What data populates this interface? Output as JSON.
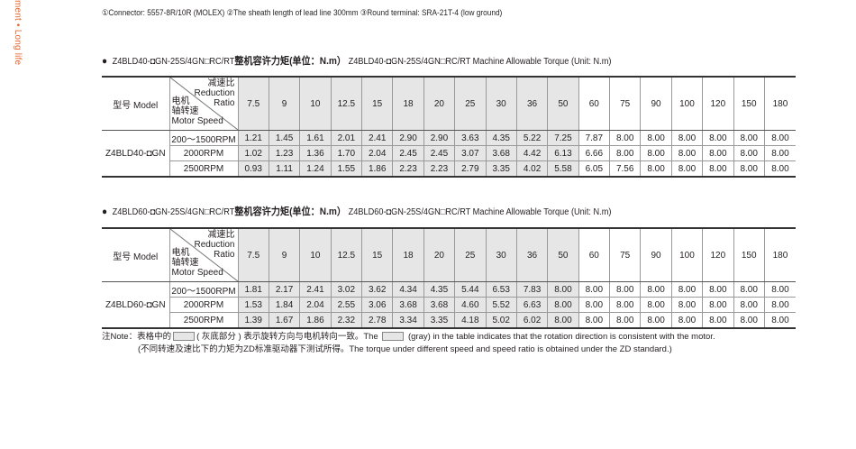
{
  "side_text": "ment • Long life",
  "top_notes": "①Connector: 5557-8R/10R (MOLEX)  ②The sheath length of lead line 300mm  ③Round terminal: SRA-21T-4 (low ground)",
  "colors": {
    "accent": "#e8662e",
    "gray_cell": "#e6e6e6"
  },
  "header": {
    "model_label": "型号 Model",
    "ratio_cn": "减速比",
    "ratio_en1": "Reduction",
    "ratio_en2": "Ratio",
    "speed_cn1": "电机",
    "speed_cn2": "轴转速",
    "speed_en": "Motor Speed"
  },
  "ratios": [
    "7.5",
    "9",
    "10",
    "12.5",
    "15",
    "18",
    "20",
    "25",
    "30",
    "36",
    "50",
    "60",
    "75",
    "90",
    "100",
    "120",
    "150",
    "180"
  ],
  "gray_ratio_count": 11,
  "tables": [
    {
      "title_prefix": "Z4BLD40-◘GN-25S/4GN□RC/RT",
      "title_cn": "整机容许力矩(单位：N.m）",
      "title_en": "Z4BLD40-◘GN-25S/4GN□RC/RT Machine Allowable Torque (Unit: N.m)",
      "model": "Z4BLD40-◘GN",
      "rows": [
        {
          "speed": "200～1500RPM",
          "values": [
            "1.21",
            "1.45",
            "1.61",
            "2.01",
            "2.41",
            "2.90",
            "2.90",
            "3.63",
            "4.35",
            "5.22",
            "7.25",
            "7.87",
            "8.00",
            "8.00",
            "8.00",
            "8.00",
            "8.00",
            "8.00"
          ]
        },
        {
          "speed": "2000RPM",
          "values": [
            "1.02",
            "1.23",
            "1.36",
            "1.70",
            "2.04",
            "2.45",
            "2.45",
            "3.07",
            "3.68",
            "4.42",
            "6.13",
            "6.66",
            "8.00",
            "8.00",
            "8.00",
            "8.00",
            "8.00",
            "8.00"
          ]
        },
        {
          "speed": "2500RPM",
          "values": [
            "0.93",
            "1.11",
            "1.24",
            "1.55",
            "1.86",
            "2.23",
            "2.23",
            "2.79",
            "3.35",
            "4.02",
            "5.58",
            "6.05",
            "7.56",
            "8.00",
            "8.00",
            "8.00",
            "8.00",
            "8.00"
          ]
        }
      ]
    },
    {
      "title_prefix": "Z4BLD60-◘GN-25S/4GN□RC/RT",
      "title_cn": "整机容许力矩(单位：N.m）",
      "title_en": "Z4BLD60-◘GN-25S/4GN□RC/RT Machine Allowable Torque (Unit: N.m)",
      "model": "Z4BLD60-◘GN",
      "rows": [
        {
          "speed": "200～1500RPM",
          "values": [
            "1.81",
            "2.17",
            "2.41",
            "3.02",
            "3.62",
            "4.34",
            "4.35",
            "5.44",
            "6.53",
            "7.83",
            "8.00",
            "8.00",
            "8.00",
            "8.00",
            "8.00",
            "8.00",
            "8.00",
            "8.00"
          ]
        },
        {
          "speed": "2000RPM",
          "values": [
            "1.53",
            "1.84",
            "2.04",
            "2.55",
            "3.06",
            "3.68",
            "3.68",
            "4.60",
            "5.52",
            "6.63",
            "8.00",
            "8.00",
            "8.00",
            "8.00",
            "8.00",
            "8.00",
            "8.00",
            "8.00"
          ]
        },
        {
          "speed": "2500RPM",
          "values": [
            "1.39",
            "1.67",
            "1.86",
            "2.32",
            "2.78",
            "3.34",
            "3.35",
            "4.18",
            "5.02",
            "6.02",
            "8.00",
            "8.00",
            "8.00",
            "8.00",
            "8.00",
            "8.00",
            "8.00",
            "8.00"
          ]
        }
      ]
    }
  ],
  "note": {
    "line1_a": "注Note：表格中的",
    "line1_b": "( 灰底部分 ) 表示旋转方向与电机转向一致。The",
    "line1_c": "(gray) in the table indicates that the rotation direction is consistent with the motor.",
    "line2": "(不同转速及速比下的力矩为ZD标准驱动器下测试所得。The torque under different speed and speed ratio is obtained under the ZD standard.)"
  }
}
